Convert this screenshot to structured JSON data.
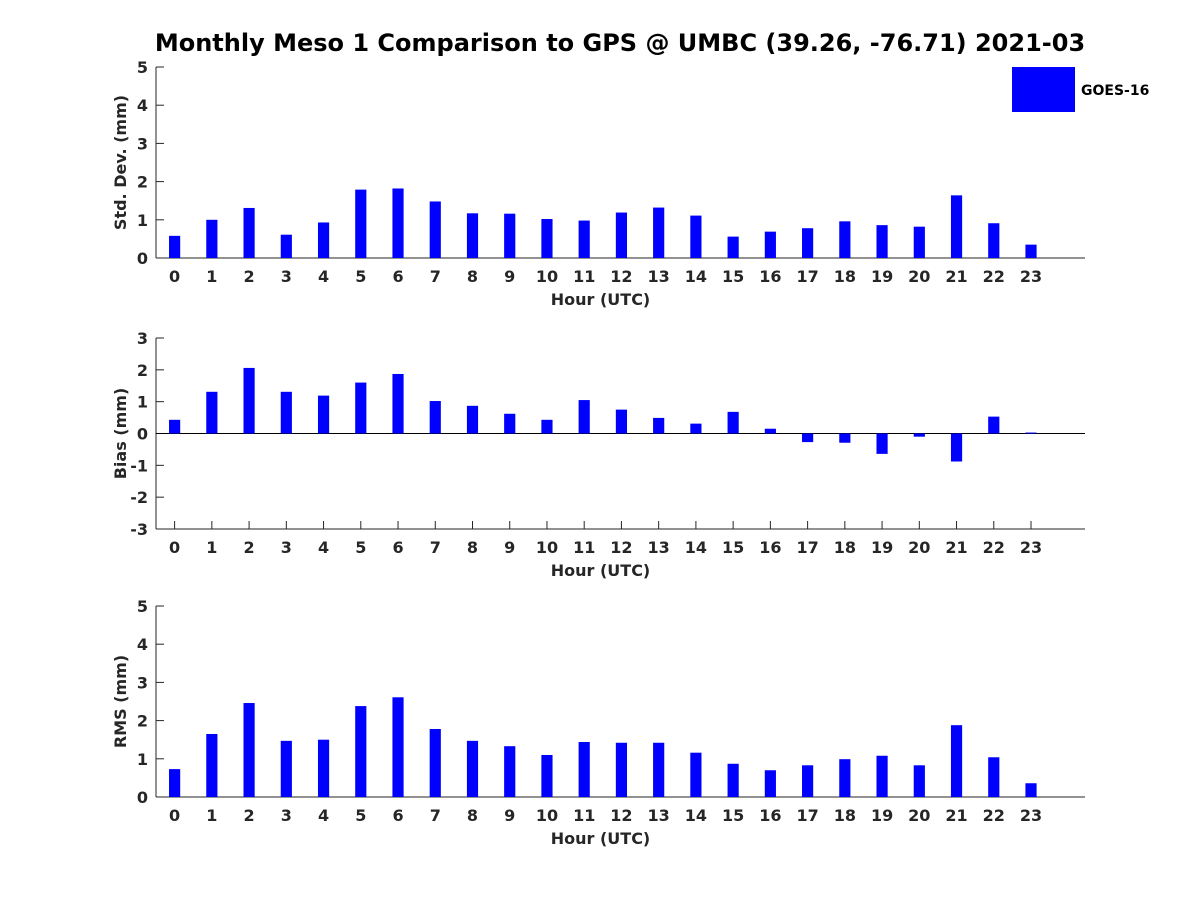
{
  "title": "Monthly Meso 1 Comparison to GPS @ UMBC (39.26, -76.71) 2021-03",
  "legend": {
    "label": "GOES-16",
    "placement": "top-right"
  },
  "colors": {
    "bar": "#0000ff",
    "axis": "#262626"
  },
  "chart_data": [
    {
      "type": "bar",
      "ylabel": "Std. Dev. (mm)",
      "xlabel": "Hour (UTC)",
      "ylim": [
        0,
        5
      ],
      "yticks": [
        0,
        1,
        2,
        3,
        4,
        5
      ],
      "categories": [
        "0",
        "1",
        "2",
        "3",
        "4",
        "5",
        "6",
        "7",
        "8",
        "9",
        "10",
        "11",
        "12",
        "13",
        "14",
        "15",
        "16",
        "17",
        "18",
        "19",
        "20",
        "21",
        "22",
        "23"
      ],
      "series": [
        {
          "name": "GOES-16",
          "values": [
            0.58,
            1.0,
            1.31,
            0.61,
            0.93,
            1.79,
            1.82,
            1.48,
            1.17,
            1.16,
            1.02,
            0.98,
            1.19,
            1.32,
            1.11,
            0.56,
            0.69,
            0.78,
            0.96,
            0.86,
            0.82,
            1.64,
            0.91,
            0.35
          ]
        }
      ],
      "grid": false
    },
    {
      "type": "bar",
      "ylabel": "Bias (mm)",
      "xlabel": "Hour (UTC)",
      "ylim": [
        -3,
        3
      ],
      "yticks": [
        -3,
        -2,
        -1,
        0,
        1,
        2,
        3
      ],
      "categories": [
        "0",
        "1",
        "2",
        "3",
        "4",
        "5",
        "6",
        "7",
        "8",
        "9",
        "10",
        "11",
        "12",
        "13",
        "14",
        "15",
        "16",
        "17",
        "18",
        "19",
        "20",
        "21",
        "22",
        "23"
      ],
      "series": [
        {
          "name": "GOES-16",
          "values": [
            0.43,
            1.31,
            2.06,
            1.31,
            1.19,
            1.6,
            1.87,
            1.02,
            0.87,
            0.62,
            0.43,
            1.05,
            0.75,
            0.49,
            0.31,
            0.68,
            0.15,
            -0.27,
            -0.29,
            -0.64,
            -0.1,
            -0.88,
            0.53,
            0.03
          ]
        }
      ],
      "grid": false
    },
    {
      "type": "bar",
      "ylabel": "RMS (mm)",
      "xlabel": "Hour (UTC)",
      "ylim": [
        0,
        5
      ],
      "yticks": [
        0,
        1,
        2,
        3,
        4,
        5
      ],
      "categories": [
        "0",
        "1",
        "2",
        "3",
        "4",
        "5",
        "6",
        "7",
        "8",
        "9",
        "10",
        "11",
        "12",
        "13",
        "14",
        "15",
        "16",
        "17",
        "18",
        "19",
        "20",
        "21",
        "22",
        "23"
      ],
      "series": [
        {
          "name": "GOES-16",
          "values": [
            0.73,
            1.65,
            2.46,
            1.47,
            1.5,
            2.38,
            2.61,
            1.78,
            1.47,
            1.33,
            1.1,
            1.44,
            1.42,
            1.42,
            1.16,
            0.87,
            0.7,
            0.83,
            0.99,
            1.08,
            0.83,
            1.88,
            1.04,
            0.36
          ]
        }
      ],
      "grid": false
    }
  ]
}
